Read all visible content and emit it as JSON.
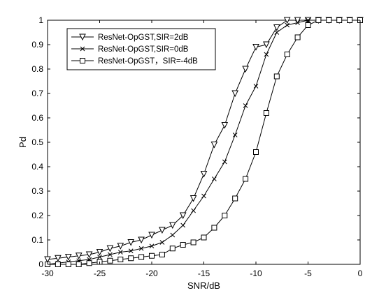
{
  "chart_data": {
    "type": "line",
    "title": "",
    "xlabel": "SNR/dB",
    "ylabel": "Pd",
    "xlim": [
      -30,
      0
    ],
    "ylim": [
      0,
      1
    ],
    "xticks": [
      -30,
      -25,
      -20,
      -15,
      -10,
      -5,
      0
    ],
    "yticks": [
      0,
      0.1,
      0.2,
      0.3,
      0.4,
      0.5,
      0.6,
      0.7,
      0.8,
      0.9,
      1
    ],
    "grid": false,
    "legend_position": "top-left",
    "x": [
      -30,
      -29,
      -28,
      -27,
      -26,
      -25,
      -24,
      -23,
      -22,
      -21,
      -20,
      -19,
      -18,
      -17,
      -16,
      -15,
      -14,
      -13,
      -12,
      -11,
      -10,
      -9,
      -8,
      -7,
      -6,
      -5,
      -4,
      -3,
      -2,
      -1,
      0
    ],
    "series": [
      {
        "name": "ResNet-OpGST,SIR=2dB",
        "marker": "triangle-down",
        "color": "#000000",
        "values": [
          0.02,
          0.025,
          0.03,
          0.035,
          0.04,
          0.05,
          0.065,
          0.075,
          0.09,
          0.1,
          0.12,
          0.14,
          0.16,
          0.2,
          0.27,
          0.37,
          0.49,
          0.57,
          0.7,
          0.8,
          0.89,
          0.9,
          0.97,
          1.0,
          1.0,
          1.0,
          1.0,
          1.0,
          1.0,
          1.0,
          1.0
        ]
      },
      {
        "name": "ResNet-OpGST,SIR=0dB",
        "marker": "x",
        "color": "#000000",
        "values": [
          0.0,
          0.005,
          0.01,
          0.015,
          0.02,
          0.03,
          0.04,
          0.05,
          0.055,
          0.065,
          0.075,
          0.09,
          0.12,
          0.16,
          0.22,
          0.28,
          0.35,
          0.42,
          0.53,
          0.65,
          0.73,
          0.86,
          0.95,
          0.98,
          0.99,
          1.0,
          1.0,
          1.0,
          1.0,
          1.0,
          1.0
        ]
      },
      {
        "name": "ResNet-OpGST，SIR=-4dB",
        "marker": "square",
        "color": "#000000",
        "values": [
          0.0,
          0.0,
          0.0,
          0.0,
          0.005,
          0.01,
          0.015,
          0.02,
          0.025,
          0.03,
          0.035,
          0.04,
          0.065,
          0.08,
          0.09,
          0.11,
          0.15,
          0.2,
          0.27,
          0.35,
          0.46,
          0.62,
          0.77,
          0.86,
          0.93,
          0.98,
          1.0,
          1.0,
          1.0,
          1.0,
          1.0
        ]
      }
    ]
  }
}
